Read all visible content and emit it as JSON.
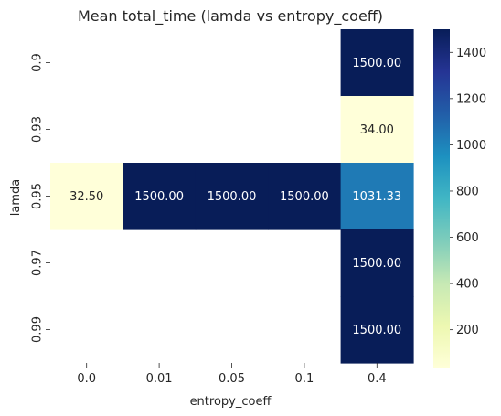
{
  "chart_data": {
    "type": "heatmap",
    "title": "Mean total_time (lamda vs entropy_coeff)",
    "xlabel": "entropy_coeff",
    "ylabel": "lamda",
    "x_categories": [
      "0.0",
      "0.01",
      "0.05",
      "0.1",
      "0.4"
    ],
    "y_categories": [
      "0.9",
      "0.93",
      "0.95",
      "0.97",
      "0.99"
    ],
    "values": [
      [
        null,
        null,
        null,
        null,
        1500.0
      ],
      [
        null,
        null,
        null,
        null,
        34.0
      ],
      [
        32.5,
        1500.0,
        1500.0,
        1500.0,
        1031.33
      ],
      [
        null,
        null,
        null,
        null,
        1500.0
      ],
      [
        null,
        null,
        null,
        null,
        1500.0
      ]
    ],
    "value_labels": [
      [
        null,
        null,
        null,
        null,
        "1500.00"
      ],
      [
        null,
        null,
        null,
        null,
        "34.00"
      ],
      [
        "32.50",
        "1500.00",
        "1500.00",
        "1500.00",
        "1031.33"
      ],
      [
        null,
        null,
        null,
        null,
        "1500.00"
      ],
      [
        null,
        null,
        null,
        null,
        "1500.00"
      ]
    ],
    "colormap": "YlGnBu",
    "color_range": [
      32.5,
      1500
    ],
    "colorbar_ticks": [
      200,
      400,
      600,
      800,
      1000,
      1200,
      1400
    ],
    "colorbar_tick_labels": [
      "200",
      "400",
      "600",
      "800",
      "1000",
      "1200",
      "1400"
    ],
    "grid": false,
    "legend": "colorbar-right"
  }
}
